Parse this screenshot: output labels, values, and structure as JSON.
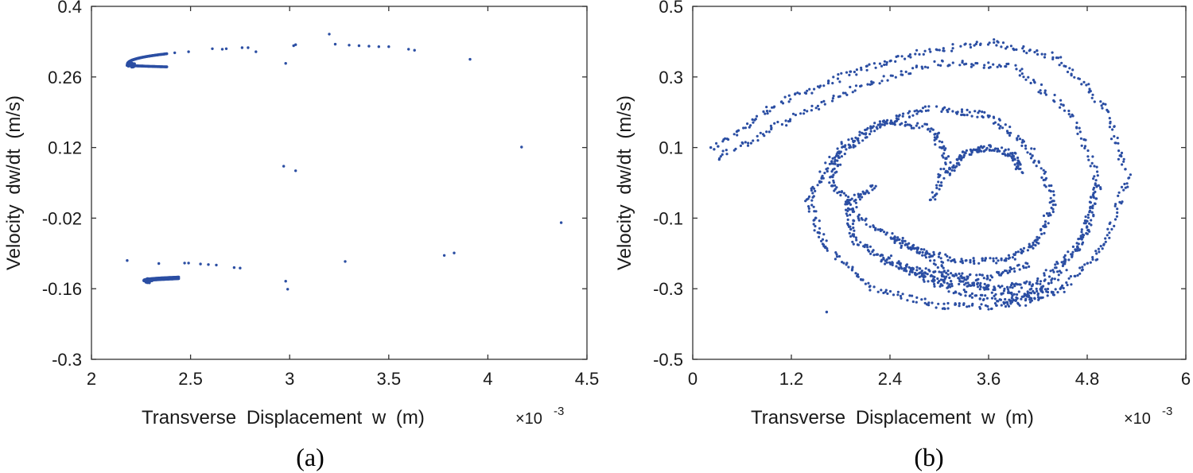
{
  "chart_data": [
    {
      "type": "scatter",
      "caption": "(a)",
      "xlabel": "Transverse  Displacement  w  (m)",
      "x_multiplier_prefix": "×10",
      "x_multiplier_exp": "-3",
      "ylabel": "Velocity  dw/dt  (m/s)",
      "xlim": [
        2,
        4.5
      ],
      "ylim": [
        -0.3,
        0.4
      ],
      "xticks": [
        "2",
        "2.5",
        "3",
        "3.5",
        "4",
        "4.5"
      ],
      "yticks": [
        "-0.3",
        "-0.16",
        "-0.02",
        "0.12",
        "0.26",
        "0.4"
      ],
      "grid": false,
      "color": "#2b4ea3",
      "clusters": [
        {
          "x0": 2.18,
          "y0": 0.283,
          "x_end": 2.38,
          "y_upper_end": 0.306,
          "y_lower_end": 0.28,
          "n": 70
        },
        {
          "x0": 2.265,
          "y0": -0.144,
          "x_end": 2.44,
          "y_upper_end": -0.137,
          "y_lower_end": -0.14,
          "n": 60
        }
      ],
      "points": [
        [
          2.42,
          0.308
        ],
        [
          2.49,
          0.31
        ],
        [
          2.61,
          0.316
        ],
        [
          2.66,
          0.315
        ],
        [
          2.68,
          0.316
        ],
        [
          2.76,
          0.318
        ],
        [
          2.79,
          0.318
        ],
        [
          2.83,
          0.31
        ],
        [
          2.98,
          0.287
        ],
        [
          3.02,
          0.322
        ],
        [
          3.03,
          0.324
        ],
        [
          3.2,
          0.345
        ],
        [
          3.23,
          0.325
        ],
        [
          3.3,
          0.323
        ],
        [
          3.35,
          0.322
        ],
        [
          3.4,
          0.321
        ],
        [
          3.45,
          0.32
        ],
        [
          3.5,
          0.32
        ],
        [
          3.6,
          0.315
        ],
        [
          3.63,
          0.313
        ],
        [
          3.91,
          0.295
        ],
        [
          4.17,
          0.121
        ],
        [
          2.97,
          0.083
        ],
        [
          3.03,
          0.074
        ],
        [
          4.37,
          -0.029
        ],
        [
          2.18,
          -0.104
        ],
        [
          2.34,
          -0.11
        ],
        [
          2.47,
          -0.109
        ],
        [
          2.49,
          -0.109
        ],
        [
          2.55,
          -0.111
        ],
        [
          2.59,
          -0.112
        ],
        [
          2.63,
          -0.113
        ],
        [
          2.72,
          -0.118
        ],
        [
          2.75,
          -0.119
        ],
        [
          3.28,
          -0.106
        ],
        [
          3.78,
          -0.094
        ],
        [
          3.83,
          -0.089
        ],
        [
          2.98,
          -0.145
        ],
        [
          2.99,
          -0.161
        ]
      ]
    },
    {
      "type": "scatter",
      "caption": "(b)",
      "xlabel": "Transverse  Displacement  w  (m)",
      "x_multiplier_prefix": "×10",
      "x_multiplier_exp": "-3",
      "ylabel": "Velocity  dw/dt  (m/s)",
      "xlim": [
        0,
        6
      ],
      "ylim": [
        -0.5,
        0.5
      ],
      "xticks": [
        "0",
        "1.2",
        "2.4",
        "3.6",
        "4.8",
        "6"
      ],
      "yticks": [
        "-0.5",
        "-0.3",
        "-0.1",
        "0.1",
        "0.3",
        "0.5"
      ],
      "grid": false,
      "color": "#2b4ea3",
      "curves": [
        [
          [
            0.3,
            0.1
          ],
          [
            1.0,
            0.22
          ],
          [
            1.8,
            0.3
          ],
          [
            2.6,
            0.36
          ],
          [
            3.6,
            0.4
          ],
          [
            4.4,
            0.36
          ],
          [
            5.0,
            0.22
          ],
          [
            5.3,
            0.02
          ],
          [
            5.0,
            -0.18
          ],
          [
            4.5,
            -0.3
          ],
          [
            4.0,
            -0.34
          ],
          [
            3.4,
            -0.32
          ],
          [
            2.8,
            -0.27
          ],
          [
            2.3,
            -0.2
          ]
        ],
        [
          [
            0.3,
            0.07
          ],
          [
            1.1,
            0.17
          ],
          [
            2.0,
            0.27
          ],
          [
            3.0,
            0.34
          ],
          [
            3.9,
            0.33
          ],
          [
            4.6,
            0.2
          ],
          [
            4.95,
            0.0
          ],
          [
            4.7,
            -0.18
          ],
          [
            4.2,
            -0.28
          ],
          [
            3.7,
            -0.3
          ],
          [
            3.1,
            -0.28
          ],
          [
            2.6,
            -0.24
          ]
        ],
        [
          [
            3.0,
            0.21
          ],
          [
            3.6,
            0.19
          ],
          [
            4.1,
            0.1
          ],
          [
            4.4,
            -0.05
          ],
          [
            4.2,
            -0.17
          ],
          [
            3.8,
            -0.22
          ],
          [
            3.2,
            -0.22
          ],
          [
            2.6,
            -0.18
          ],
          [
            2.0,
            -0.09
          ],
          [
            1.7,
            0.0
          ],
          [
            1.8,
            0.1
          ],
          [
            2.3,
            0.17
          ],
          [
            2.9,
            0.16
          ],
          [
            3.1,
            0.06
          ],
          [
            2.9,
            -0.06
          ]
        ],
        [
          [
            2.9,
            0.21
          ],
          [
            2.3,
            0.17
          ],
          [
            1.7,
            0.07
          ],
          [
            1.4,
            -0.05
          ],
          [
            1.6,
            -0.18
          ],
          [
            2.2,
            -0.3
          ],
          [
            3.0,
            -0.35
          ],
          [
            3.8,
            -0.35
          ],
          [
            4.4,
            -0.28
          ],
          [
            4.8,
            -0.14
          ],
          [
            4.9,
            0.0
          ]
        ],
        [
          [
            2.2,
            -0.01
          ],
          [
            1.9,
            -0.06
          ],
          [
            1.95,
            -0.16
          ],
          [
            2.4,
            -0.23
          ],
          [
            3.0,
            -0.26
          ],
          [
            3.6,
            -0.27
          ],
          [
            4.1,
            -0.23
          ]
        ],
        [
          [
            2.4,
            -0.15
          ],
          [
            2.8,
            -0.2
          ],
          [
            3.3,
            -0.28
          ],
          [
            3.9,
            -0.32
          ],
          [
            4.3,
            -0.3
          ]
        ],
        [
          [
            3.1,
            0.03
          ],
          [
            3.3,
            0.08
          ],
          [
            3.6,
            0.1
          ],
          [
            3.9,
            0.08
          ],
          [
            4.0,
            0.03
          ]
        ]
      ],
      "points": [
        [
          1.63,
          -0.366
        ],
        [
          0.22,
          0.1
        ],
        [
          0.26,
          0.095
        ]
      ]
    }
  ]
}
